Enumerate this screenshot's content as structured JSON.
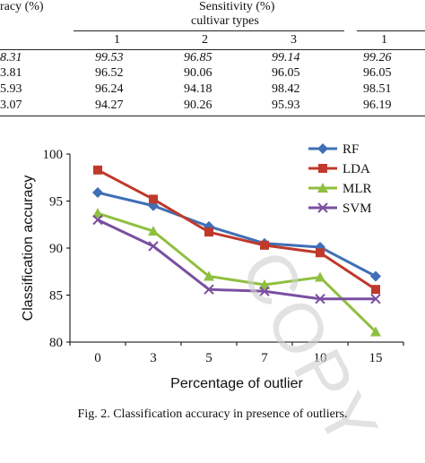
{
  "table": {
    "col_header_left": "racy (%)",
    "col_header_sens": "Sensitivity (%)",
    "col_subheader": "cultivar types",
    "col_numbers": [
      "1",
      "2",
      "3",
      "1"
    ],
    "rows": [
      {
        "acc": "8.31",
        "c1": "99.53",
        "c2": "96.85",
        "c3": "99.14",
        "c4": "99.26",
        "italic": true
      },
      {
        "acc": "3.81",
        "c1": "96.52",
        "c2": "90.06",
        "c3": "96.05",
        "c4": "96.05",
        "italic": false
      },
      {
        "acc": "5.93",
        "c1": "96.24",
        "c2": "94.18",
        "c3": "98.42",
        "c4": "98.51",
        "italic": false
      },
      {
        "acc": "3.07",
        "c1": "94.27",
        "c2": "90.26",
        "c3": "95.93",
        "c4": "96.19",
        "italic": false
      }
    ]
  },
  "chart_data": {
    "type": "line",
    "categories": [
      "0",
      "3",
      "5",
      "7",
      "10",
      "15"
    ],
    "ylabel": "Classification  accuracy",
    "xlabel": "Percentage of outlier",
    "ylim": [
      80,
      100
    ],
    "yticks": [
      "80",
      "85",
      "90",
      "95",
      "100"
    ],
    "legend_position": "top-right",
    "grid": false,
    "series": [
      {
        "name": "RF",
        "values": [
          95.9,
          94.5,
          92.3,
          90.5,
          90.1,
          87.0
        ],
        "color": "#3f6fb5",
        "marker": "diamond"
      },
      {
        "name": "LDA",
        "values": [
          98.3,
          95.2,
          91.7,
          90.3,
          89.5,
          85.6
        ],
        "color": "#c0392b",
        "marker": "square"
      },
      {
        "name": "MLR",
        "values": [
          93.7,
          91.8,
          87.0,
          86.1,
          86.9,
          81.1
        ],
        "color": "#8fbf3f",
        "marker": "triangle"
      },
      {
        "name": "SVM",
        "values": [
          93.0,
          90.2,
          85.6,
          85.4,
          84.6,
          84.6
        ],
        "color": "#7a4fa0",
        "marker": "x"
      }
    ]
  },
  "caption": "Fig. 2. Classification accuracy in presence of outliers.",
  "watermark": "COPY"
}
